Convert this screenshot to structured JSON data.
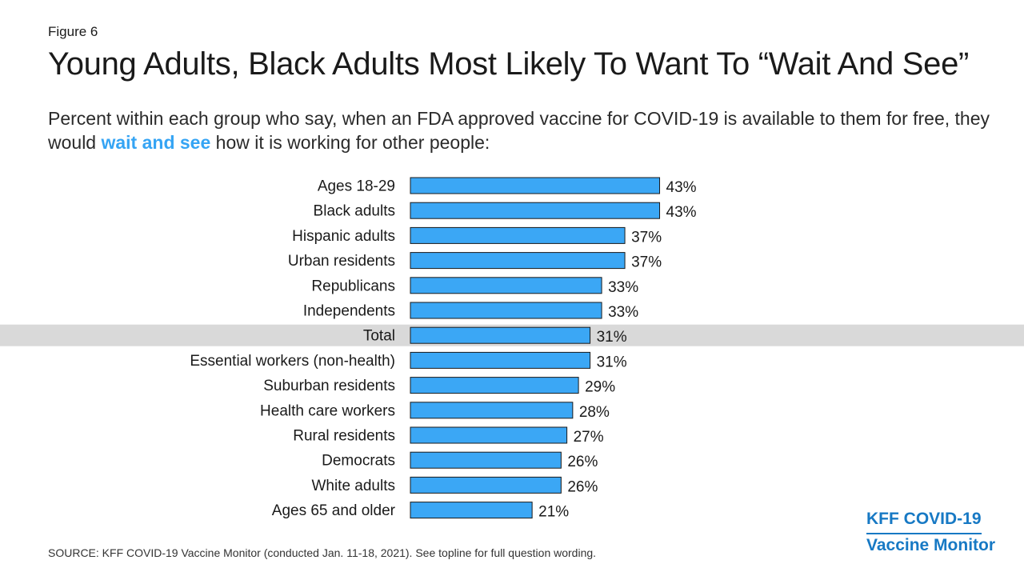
{
  "figure_label": "Figure 6",
  "subtitle": {
    "part1": "Percent within each group who say, when an FDA approved vaccine for COVID-19 is available to them for free, they would ",
    "highlight": "wait and see",
    "part2": " how it is working for other people:"
  },
  "source": "SOURCE: KFF COVID-19 Vaccine Monitor (conducted Jan. 11-18, 2021). See topline for full question wording.",
  "logo": {
    "line1": "KFF COVID-19",
    "line2": "Vaccine Monitor"
  },
  "colors": {
    "bar": "#3ba7f5",
    "bar_stroke": "#1a1a1a",
    "highlight_row": "#d9d9d9",
    "highlight_text": "#35a4f4",
    "logo": "#1779c4"
  },
  "chart_data": {
    "type": "bar",
    "orientation": "horizontal",
    "title": "Young Adults, Black Adults Most Likely To Want To “Wait And See”",
    "categories": [
      "Ages 18-29",
      "Black adults",
      "Hispanic adults",
      "Urban residents",
      "Republicans",
      "Independents",
      "Total",
      "Essential workers (non-health)",
      "Suburban residents",
      "Health care workers",
      "Rural residents",
      "Democrats",
      "White adults",
      "Ages 65 and older"
    ],
    "values": [
      43,
      43,
      37,
      37,
      33,
      33,
      31,
      31,
      29,
      28,
      27,
      26,
      26,
      21
    ],
    "labels": [
      "43%",
      "43%",
      "37%",
      "37%",
      "33%",
      "33%",
      "31%",
      "31%",
      "29%",
      "28%",
      "27%",
      "26%",
      "26%",
      "21%"
    ],
    "highlighted_category": "Total",
    "xlim": [
      0,
      100
    ],
    "grid": false,
    "legend": "none"
  }
}
